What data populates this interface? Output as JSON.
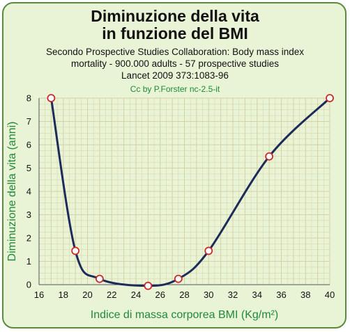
{
  "header": {
    "title_line1": "Diminuzione della vita",
    "title_line2": "in funzione del BMI",
    "subtitle_line1": "Secondo Prospective Studies Collaboration: Body mass index",
    "subtitle_line2": "mortality - 900.000 adults - 57 prospective studies",
    "subtitle_line3": "Lancet 2009 373:1083-96",
    "credit": "Cc by P.Forster nc-2.5-it"
  },
  "colors": {
    "background": "#e9f3d6",
    "grid": "#d6d1a2",
    "curve": "#1c2b5a",
    "marker_fill": "#ffffff",
    "marker_stroke": "#cc2a2a",
    "axis_label": "#1f8a3a",
    "border": "#5b8a3c"
  },
  "chart_data": {
    "type": "line",
    "title": "Diminuzione della vita in funzione del BMI",
    "xlabel": "Indice di massa corporea BMI (Kg/m²)",
    "ylabel": "Diminuzione della vita (anni)",
    "xlim": [
      16,
      40
    ],
    "ylim": [
      0,
      8
    ],
    "xticks": [
      16,
      18,
      20,
      22,
      24,
      26,
      28,
      30,
      32,
      34,
      36,
      38,
      40
    ],
    "yticks": [
      0,
      1,
      2,
      3,
      4,
      5,
      6,
      7,
      8
    ],
    "grid": true,
    "series": [
      {
        "x": [
          17,
          19,
          21,
          25,
          27.5,
          30,
          35,
          40
        ],
        "values": [
          8,
          1.45,
          0.25,
          -0.05,
          0.25,
          1.45,
          5.5,
          8
        ]
      }
    ]
  }
}
